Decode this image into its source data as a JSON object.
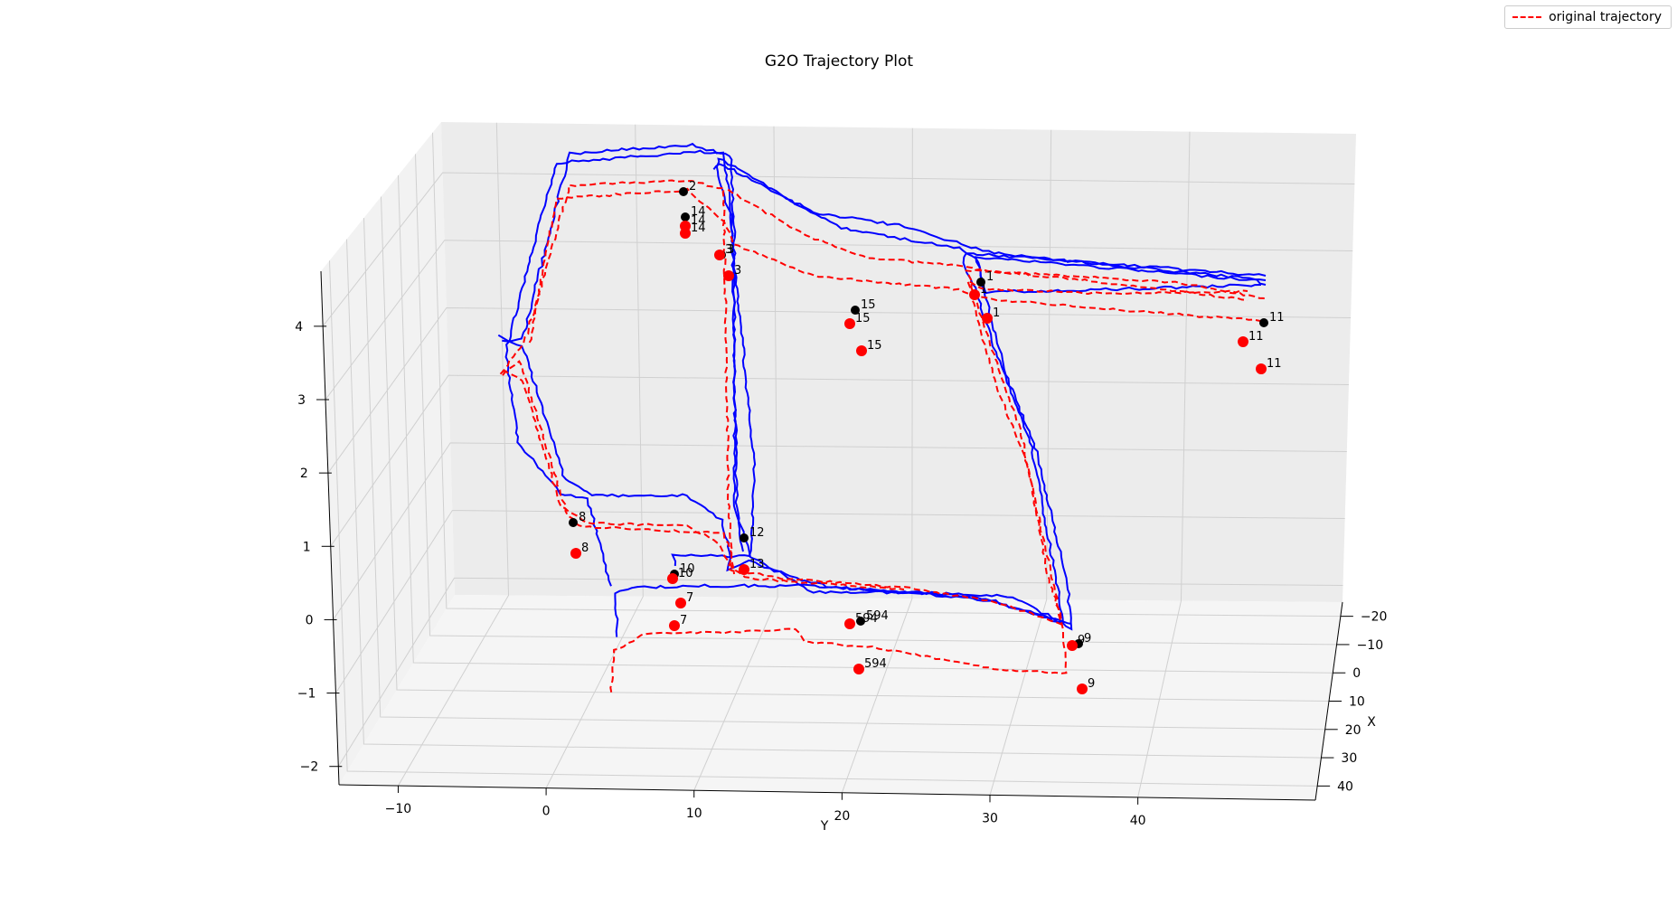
{
  "chart_data": {
    "type": "line",
    "title": "G2O Trajectory Plot",
    "xlabel": "X",
    "ylabel": "Y",
    "zlim": [
      -2,
      4.5
    ],
    "x_ticks": [
      "−20",
      "−10",
      "0",
      "10",
      "20",
      "30",
      "40"
    ],
    "y_ticks": [
      "−10",
      "0",
      "10",
      "20",
      "30",
      "40"
    ],
    "z_ticks": [
      "−2",
      "−1",
      "0",
      "1",
      "2",
      "3",
      "4"
    ],
    "legend": {
      "entries": [
        "original trajectory"
      ],
      "position": "top-right"
    },
    "grid": true,
    "series": [
      {
        "name": "original trajectory",
        "color": "#ff0000",
        "style": "dashed"
      },
      {
        "color": "#0000ff",
        "style": "solid"
      }
    ],
    "landmarks": [
      {
        "label": "2",
        "color": "#000000"
      },
      {
        "label": "14",
        "color": "#000000"
      },
      {
        "label": "14",
        "color": "#ff0000"
      },
      {
        "label": "14",
        "color": "#ff0000"
      },
      {
        "label": "3",
        "color": "#000000"
      },
      {
        "label": "3",
        "color": "#ff0000"
      },
      {
        "label": "3",
        "color": "#ff0000"
      },
      {
        "label": "15",
        "color": "#000000"
      },
      {
        "label": "15",
        "color": "#ff0000"
      },
      {
        "label": "15",
        "color": "#ff0000"
      },
      {
        "label": "1",
        "color": "#000000"
      },
      {
        "label": "1",
        "color": "#ff0000"
      },
      {
        "label": "1",
        "color": "#ff0000"
      },
      {
        "label": "11",
        "color": "#000000"
      },
      {
        "label": "11",
        "color": "#ff0000"
      },
      {
        "label": "11",
        "color": "#ff0000"
      },
      {
        "label": "8",
        "color": "#000000"
      },
      {
        "label": "8",
        "color": "#ff0000"
      },
      {
        "label": "12",
        "color": "#000000"
      },
      {
        "label": "13",
        "color": "#ff0000"
      },
      {
        "label": "10",
        "color": "#000000"
      },
      {
        "label": "10",
        "color": "#ff0000"
      },
      {
        "label": "7",
        "color": "#ff0000"
      },
      {
        "label": "7",
        "color": "#ff0000"
      },
      {
        "label": "594",
        "color": "#000000"
      },
      {
        "label": "594",
        "color": "#ff0000"
      },
      {
        "label": "594",
        "color": "#ff0000"
      },
      {
        "label": "9",
        "color": "#000000"
      },
      {
        "label": "9",
        "color": "#ff0000"
      },
      {
        "label": "9",
        "color": "#ff0000"
      }
    ]
  }
}
